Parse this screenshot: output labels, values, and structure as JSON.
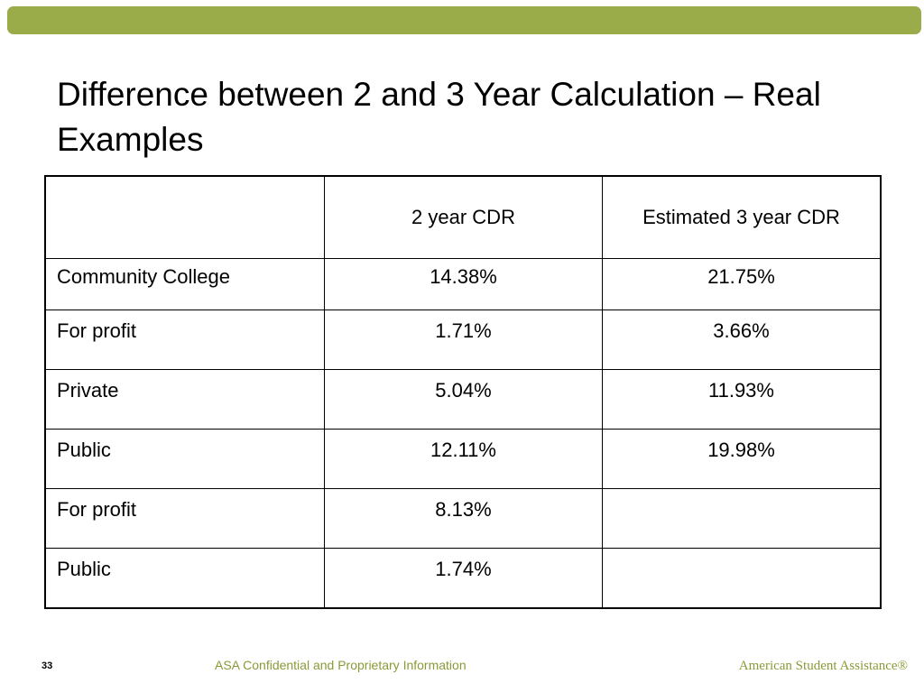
{
  "slide": {
    "title": "Difference between 2 and 3 Year Calculation – Real Examples",
    "accent_color": "#9aab4a"
  },
  "table": {
    "headers": [
      "",
      "2 year CDR",
      "Estimated 3 year CDR"
    ],
    "rows": [
      [
        "Community College",
        "14.38%",
        "21.75%"
      ],
      [
        "For profit",
        "1.71%",
        "3.66%"
      ],
      [
        "Private",
        "5.04%",
        "11.93%"
      ],
      [
        "Public",
        "12.11%",
        "19.98%"
      ],
      [
        "For profit",
        "8.13%",
        ""
      ],
      [
        "Public",
        "1.74%",
        ""
      ]
    ]
  },
  "footer": {
    "page_number": "33",
    "confidential": "ASA Confidential and Proprietary Information",
    "brand": "American Student Assistance®"
  }
}
